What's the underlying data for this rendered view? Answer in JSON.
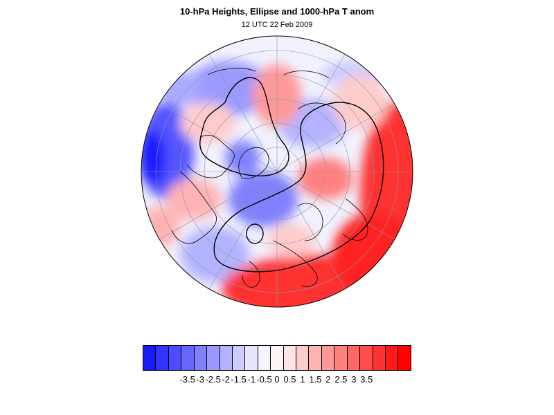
{
  "title": "10-hPa Heights, Ellipse and 1000-hPa T anom",
  "subtitle": "12 UTC 22 Feb 2009",
  "map": {
    "projection": "polar stereographic (north pole)",
    "field": "1000-hPa temperature anomaly",
    "overlays": [
      "coastlines",
      "lat/lon grid",
      "10-hPa height contours",
      "ellipse"
    ]
  },
  "colorbar": {
    "colors": [
      "#1a1aff",
      "#3333ff",
      "#4d4dff",
      "#6666ff",
      "#8080ff",
      "#9999ff",
      "#b3b3ff",
      "#ccccff",
      "#e6e6ff",
      "#f5f5ff",
      "#fff5f5",
      "#ffe6e6",
      "#ffcccc",
      "#ffb3b3",
      "#ff9999",
      "#ff8080",
      "#ff6666",
      "#ff4d4d",
      "#ff3333",
      "#ff1a1a",
      "#ff0000"
    ],
    "tick_labels": [
      "-3.5",
      "-3",
      "-2.5",
      "-2",
      "-1.5",
      "-1",
      "-0.5",
      "0",
      "0.5",
      "1",
      "1.5",
      "2",
      "2.5",
      "3",
      "3.5"
    ]
  }
}
